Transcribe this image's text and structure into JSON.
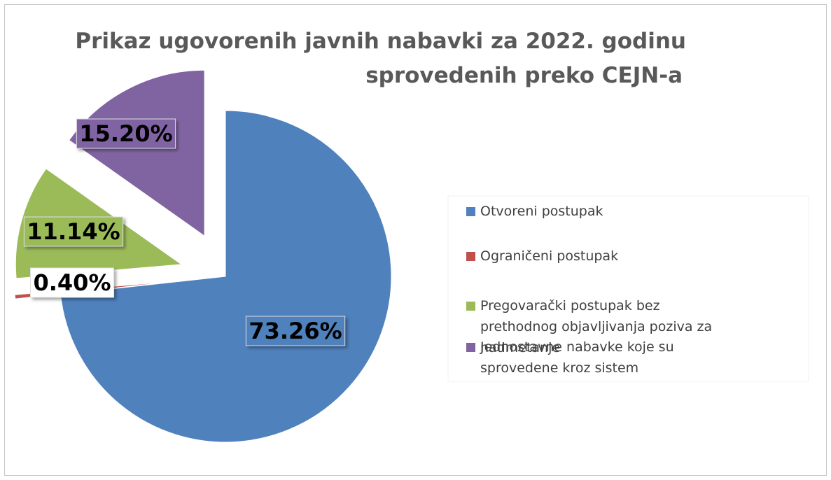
{
  "chart_data": {
    "type": "pie",
    "title": [
      "Prikaz ugovorenih javnih nabavki za 2022. godinu",
      "sprovedenih preko CEJN-a"
    ],
    "categories": [
      "Otvoreni postupak",
      "Ograničeni postupak",
      "Pregovarački postupak bez prethodnog objavljivanja poziva za nadmetanje",
      "Jednostavne nabavke koje su sprovedene kroz sistem"
    ],
    "values": [
      73.26,
      0.4,
      11.14,
      15.2
    ],
    "value_labels": [
      "73.26%",
      "0.40%",
      "11.14%",
      "15.20%"
    ],
    "colors": [
      "#4f81bd",
      "#c0504d",
      "#9bbb59",
      "#8064a2"
    ],
    "legend": "right"
  }
}
